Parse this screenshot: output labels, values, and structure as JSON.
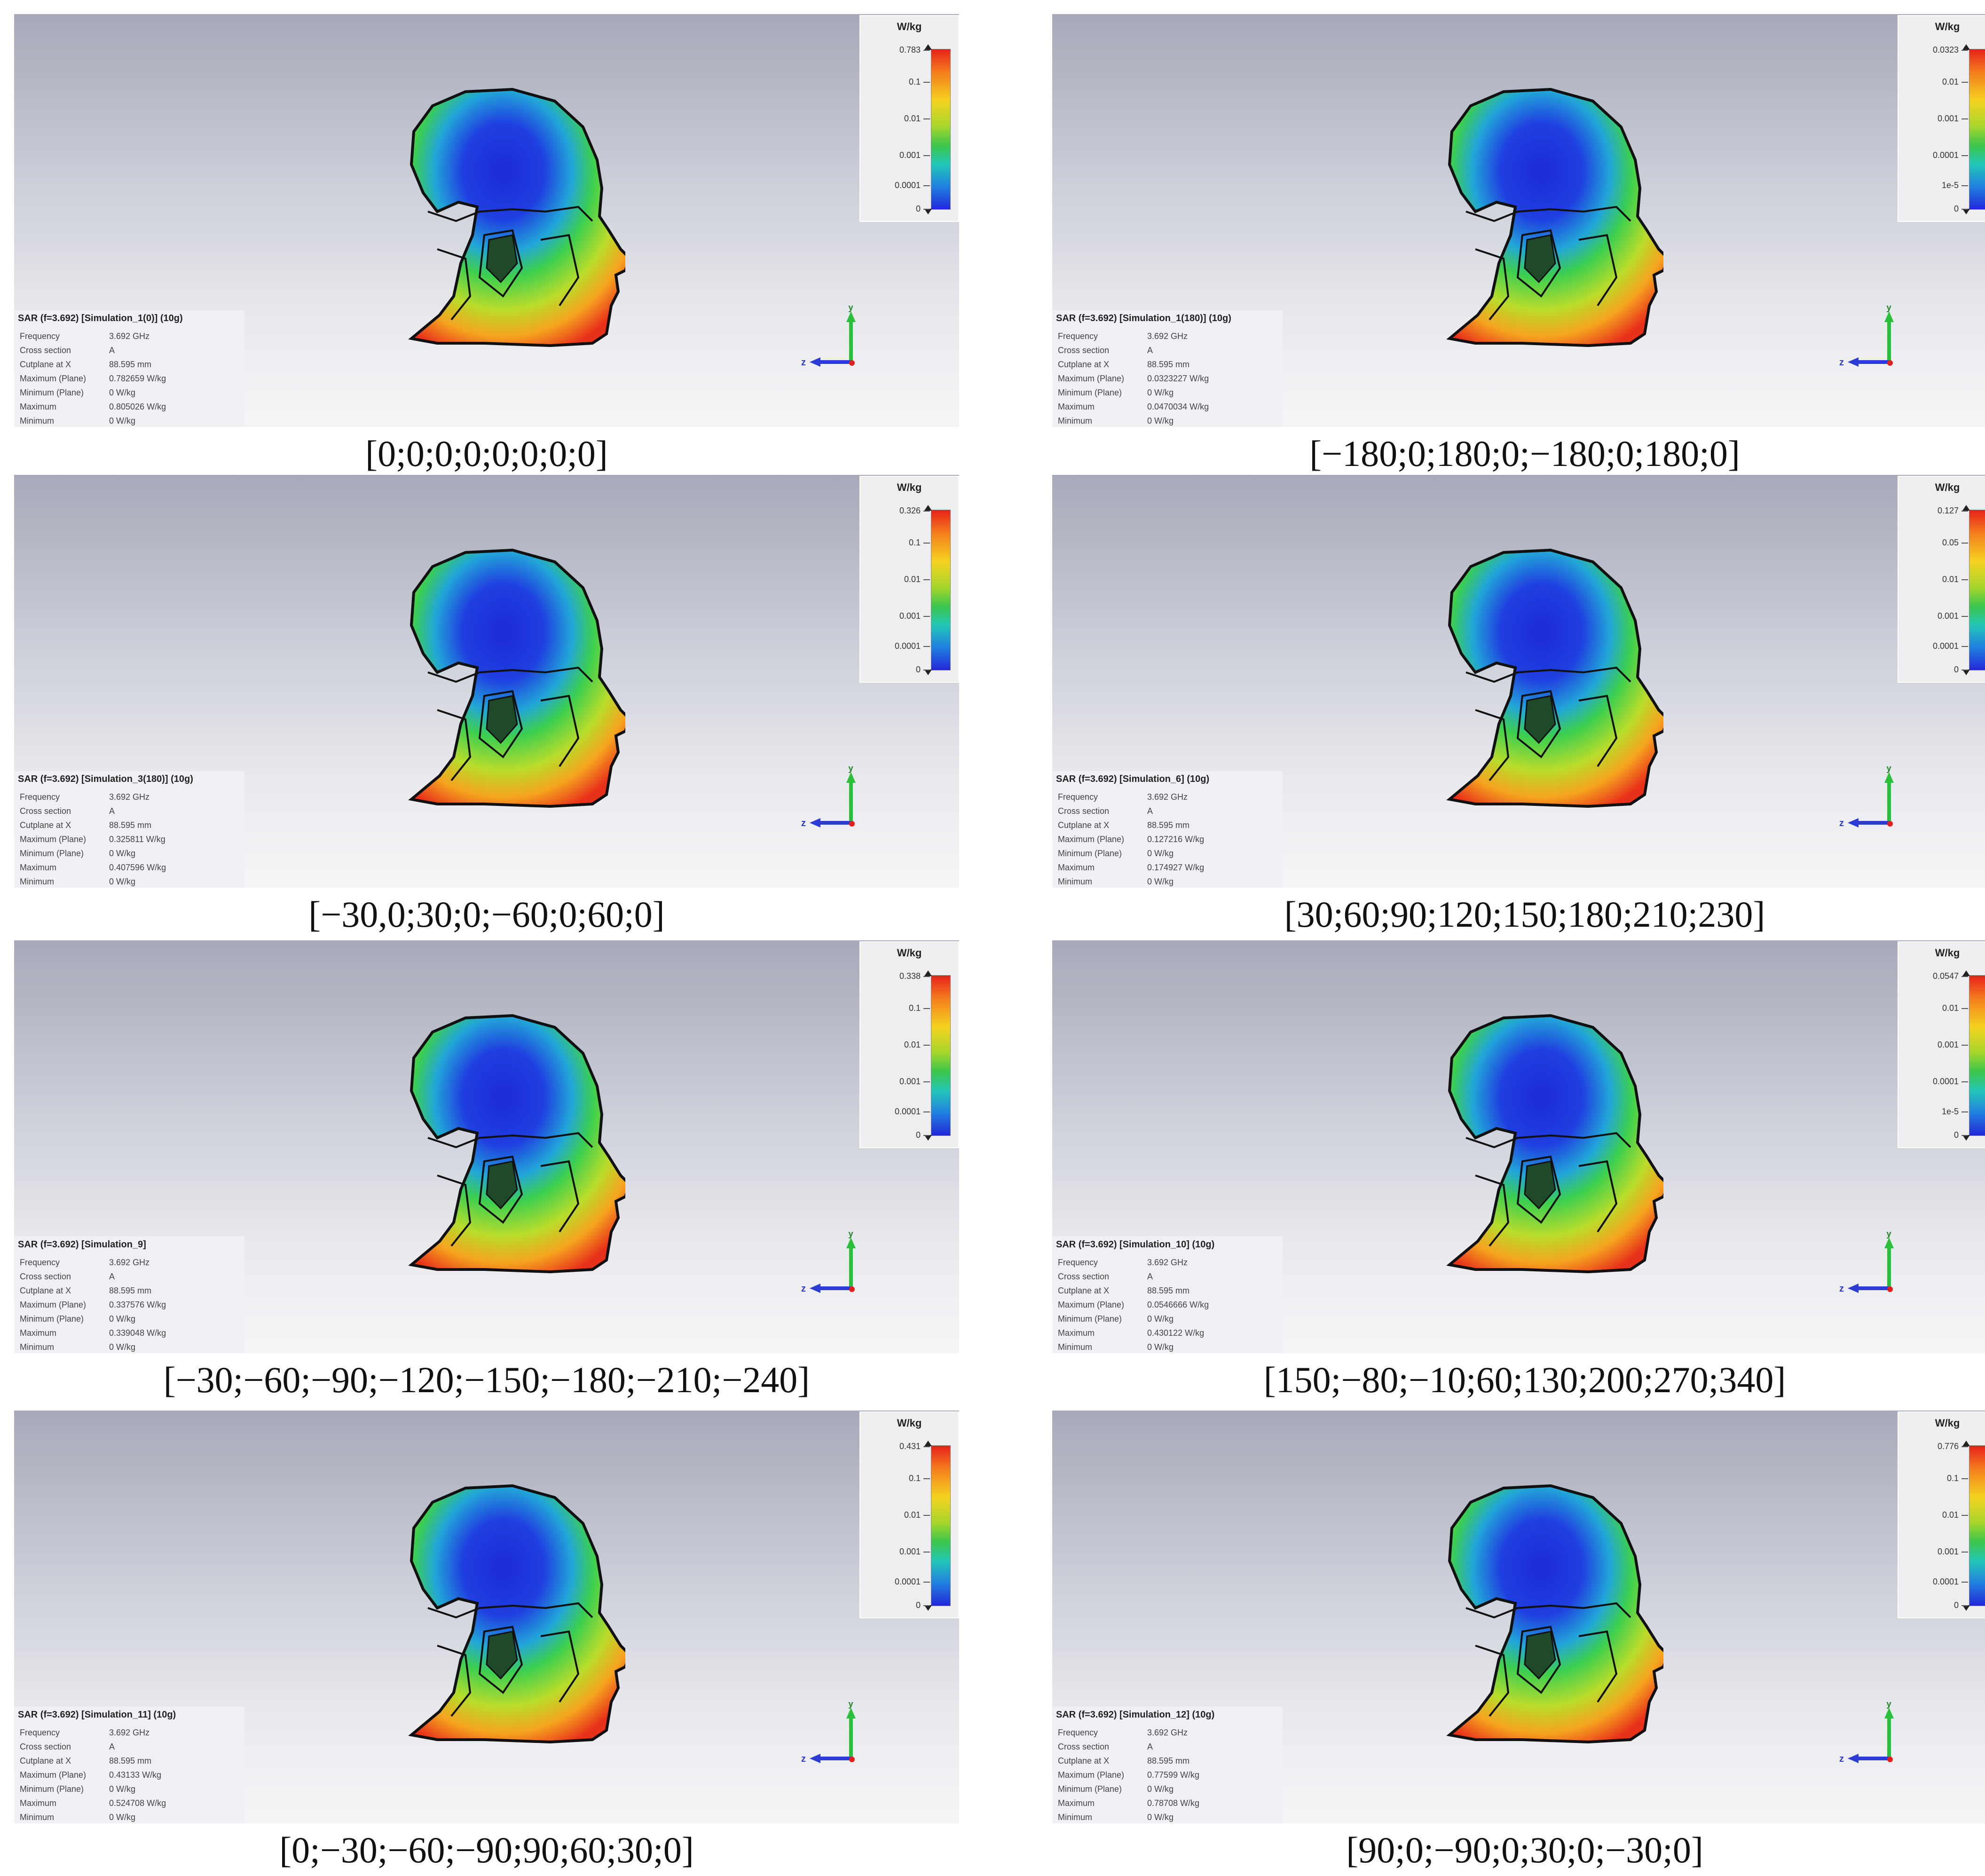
{
  "colorbar_unit": "W/kg",
  "info_labels": [
    "Frequency",
    "Cross section",
    "Cutplane at X",
    "Maximum (Plane)",
    "Minimum (Plane)",
    "Maximum",
    "Minimum"
  ],
  "axis_labels": {
    "y": "y",
    "z": "z"
  },
  "panels": [
    {
      "title": "SAR (f=3.692) [Simulation_1(0)] (10g)",
      "values": [
        "3.692 GHz",
        "A",
        "88.595 mm",
        "0.782659 W/kg",
        "0 W/kg",
        "0.805026 W/kg",
        "0 W/kg"
      ],
      "ticks": [
        "0.783",
        "0.1",
        "0.01",
        "0.001",
        "0.0001",
        "0"
      ],
      "caption": "[0;0;0;0;0;0;0;0]"
    },
    {
      "title": "SAR (f=3.692) [Simulation_1(180)] (10g)",
      "values": [
        "3.692 GHz",
        "A",
        "88.595 mm",
        "0.0323227 W/kg",
        "0 W/kg",
        "0.0470034 W/kg",
        "0 W/kg"
      ],
      "ticks": [
        "0.0323",
        "0.01",
        "0.001",
        "0.0001",
        "1e-5",
        "0"
      ],
      "caption": "[−180;0;180;0;−180;0;180;0]"
    },
    {
      "title": "SAR (f=3.692) [Simulation_3(180)] (10g)",
      "values": [
        "3.692 GHz",
        "A",
        "88.595 mm",
        "0.325811 W/kg",
        "0 W/kg",
        "0.407596 W/kg",
        "0 W/kg"
      ],
      "ticks": [
        "0.326",
        "0.1",
        "0.01",
        "0.001",
        "0.0001",
        "0"
      ],
      "caption": "[−30,0;30;0;−60;0;60;0]"
    },
    {
      "title": "SAR (f=3.692) [Simulation_6] (10g)",
      "values": [
        "3.692 GHz",
        "A",
        "88.595 mm",
        "0.127216 W/kg",
        "0 W/kg",
        "0.174927 W/kg",
        "0 W/kg"
      ],
      "ticks": [
        "0.127",
        "0.05",
        "0.01",
        "0.001",
        "0.0001",
        "0"
      ],
      "caption": "[30;60;90;120;150;180;210;230]"
    },
    {
      "title": "SAR (f=3.692) [Simulation_9]",
      "values": [
        "3.692 GHz",
        "A",
        "88.595 mm",
        "0.337576 W/kg",
        "0 W/kg",
        "0.339048 W/kg",
        "0 W/kg"
      ],
      "ticks": [
        "0.338",
        "0.1",
        "0.01",
        "0.001",
        "0.0001",
        "0"
      ],
      "caption": "[−30;−60;−90;−120;−150;−180;−210;−240]"
    },
    {
      "title": "SAR (f=3.692) [Simulation_10] (10g)",
      "values": [
        "3.692 GHz",
        "A",
        "88.595 mm",
        "0.0546666 W/kg",
        "0 W/kg",
        "0.430122 W/kg",
        "0 W/kg"
      ],
      "ticks": [
        "0.0547",
        "0.01",
        "0.001",
        "0.0001",
        "1e-5",
        "0"
      ],
      "caption": "[150;−80;−10;60;130;200;270;340]"
    },
    {
      "title": "SAR (f=3.692) [Simulation_11] (10g)",
      "values": [
        "3.692 GHz",
        "A",
        "88.595 mm",
        "0.43133 W/kg",
        "0 W/kg",
        "0.524708 W/kg",
        "0 W/kg"
      ],
      "ticks": [
        "0.431",
        "0.1",
        "0.01",
        "0.001",
        "0.0001",
        "0"
      ],
      "caption": "[0;−30;−60;−90;90;60;30;0]"
    },
    {
      "title": "SAR (f=3.692) [Simulation_12] (10g)",
      "values": [
        "3.692 GHz",
        "A",
        "88.595 mm",
        "0.77599 W/kg",
        "0 W/kg",
        "0.78708 W/kg",
        "0 W/kg"
      ],
      "ticks": [
        "0.776",
        "0.1",
        "0.01",
        "0.001",
        "0.0001",
        "0"
      ],
      "caption": "[90;0;−90;0;30;0;−30;0]"
    }
  ]
}
